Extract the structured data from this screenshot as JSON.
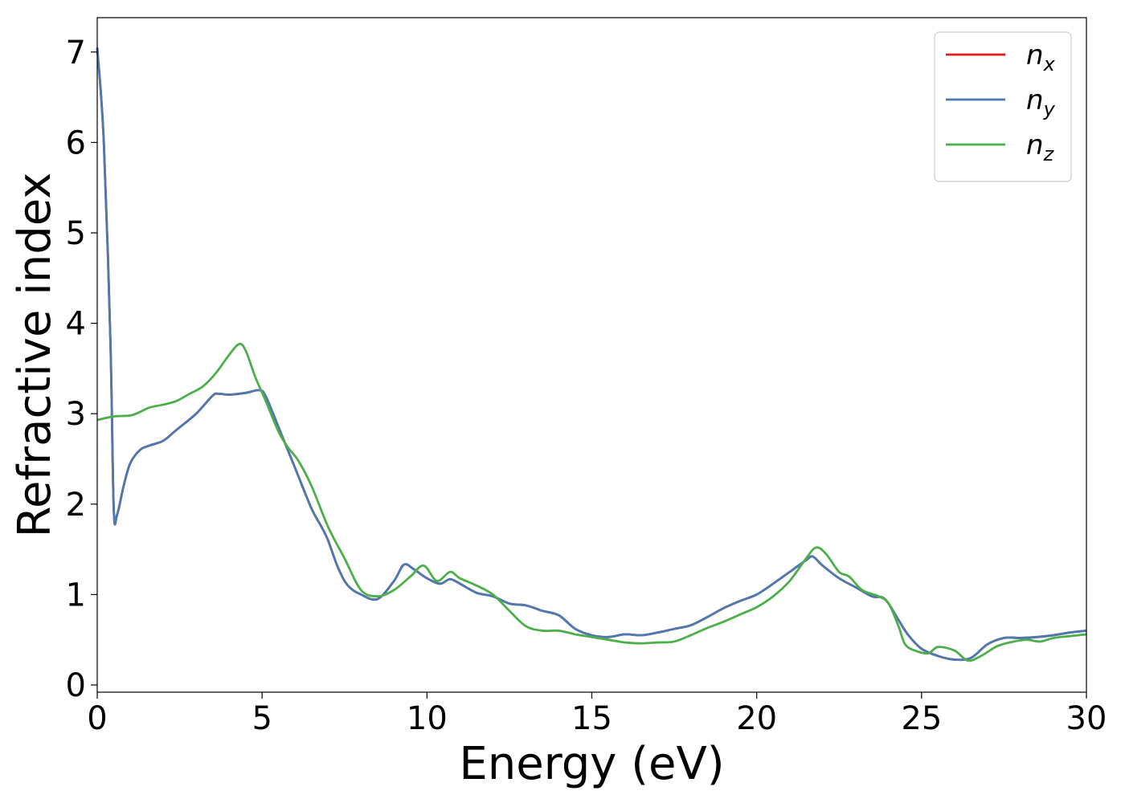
{
  "chart_data": {
    "type": "line",
    "title": "",
    "xlabel": "Energy (eV)",
    "ylabel": "Refractive index",
    "xlim": [
      0,
      30
    ],
    "ylim": [
      -0.08,
      7.38
    ],
    "xticks": [
      0,
      5,
      10,
      15,
      20,
      25,
      30
    ],
    "yticks": [
      0,
      1,
      2,
      3,
      4,
      5,
      6,
      7
    ],
    "grid": false,
    "legend_position": "top-right",
    "series": [
      {
        "name": "n",
        "subscript": "x",
        "color": "#e41a1c",
        "x": [
          0,
          0.2,
          0.4,
          0.5,
          0.6,
          0.8,
          1.0,
          1.3,
          1.6,
          2.0,
          2.4,
          3.0,
          3.5,
          3.7,
          4.0,
          4.5,
          4.9,
          5.1,
          5.5,
          6.0,
          6.5,
          6.8,
          7.0,
          7.3,
          7.6,
          8.0,
          8.5,
          9.0,
          9.3,
          9.6,
          10.0,
          10.4,
          10.7,
          11.0,
          11.5,
          12.0,
          12.5,
          13.0,
          13.5,
          14.0,
          14.5,
          15.0,
          15.5,
          16.0,
          16.5,
          17.0,
          17.5,
          18.0,
          18.5,
          19.0,
          19.5,
          20.0,
          20.5,
          21.0,
          21.5,
          21.7,
          22.0,
          22.5,
          23.0,
          23.5,
          23.8,
          24.0,
          24.3,
          24.6,
          25.0,
          25.5,
          26.0,
          26.5,
          27.0,
          27.5,
          28.0,
          28.5,
          29.0,
          29.5,
          30.0
        ],
        "values": [
          7.05,
          6.0,
          3.8,
          1.95,
          1.88,
          2.2,
          2.45,
          2.6,
          2.65,
          2.7,
          2.82,
          3.0,
          3.2,
          3.22,
          3.21,
          3.23,
          3.26,
          3.2,
          2.85,
          2.4,
          1.95,
          1.75,
          1.6,
          1.3,
          1.1,
          1.0,
          0.95,
          1.15,
          1.33,
          1.28,
          1.18,
          1.12,
          1.17,
          1.12,
          1.02,
          0.98,
          0.9,
          0.88,
          0.82,
          0.77,
          0.62,
          0.55,
          0.53,
          0.56,
          0.55,
          0.58,
          0.62,
          0.66,
          0.75,
          0.85,
          0.93,
          1.0,
          1.12,
          1.25,
          1.38,
          1.42,
          1.32,
          1.18,
          1.08,
          0.98,
          0.97,
          0.9,
          0.72,
          0.55,
          0.4,
          0.32,
          0.28,
          0.3,
          0.45,
          0.52,
          0.52,
          0.53,
          0.55,
          0.58,
          0.6
        ]
      },
      {
        "name": "n",
        "subscript": "y",
        "color": "#4a7ab0",
        "x": [
          0,
          0.2,
          0.4,
          0.5,
          0.6,
          0.8,
          1.0,
          1.3,
          1.6,
          2.0,
          2.4,
          3.0,
          3.5,
          3.7,
          4.0,
          4.5,
          4.9,
          5.1,
          5.5,
          6.0,
          6.5,
          6.8,
          7.0,
          7.3,
          7.6,
          8.0,
          8.5,
          9.0,
          9.3,
          9.6,
          10.0,
          10.4,
          10.7,
          11.0,
          11.5,
          12.0,
          12.5,
          13.0,
          13.5,
          14.0,
          14.5,
          15.0,
          15.5,
          16.0,
          16.5,
          17.0,
          17.5,
          18.0,
          18.5,
          19.0,
          19.5,
          20.0,
          20.5,
          21.0,
          21.5,
          21.7,
          22.0,
          22.5,
          23.0,
          23.5,
          23.8,
          24.0,
          24.3,
          24.6,
          25.0,
          25.5,
          26.0,
          26.5,
          27.0,
          27.5,
          28.0,
          28.5,
          29.0,
          29.5,
          30.0
        ],
        "values": [
          7.05,
          6.0,
          3.8,
          1.95,
          1.88,
          2.2,
          2.45,
          2.6,
          2.65,
          2.7,
          2.82,
          3.0,
          3.2,
          3.22,
          3.21,
          3.23,
          3.26,
          3.2,
          2.85,
          2.4,
          1.95,
          1.75,
          1.6,
          1.3,
          1.1,
          1.0,
          0.95,
          1.15,
          1.33,
          1.28,
          1.18,
          1.12,
          1.17,
          1.12,
          1.02,
          0.98,
          0.9,
          0.88,
          0.82,
          0.77,
          0.62,
          0.55,
          0.53,
          0.56,
          0.55,
          0.58,
          0.62,
          0.66,
          0.75,
          0.85,
          0.93,
          1.0,
          1.12,
          1.25,
          1.38,
          1.42,
          1.32,
          1.18,
          1.08,
          0.98,
          0.97,
          0.9,
          0.72,
          0.55,
          0.4,
          0.32,
          0.28,
          0.3,
          0.45,
          0.52,
          0.52,
          0.53,
          0.55,
          0.58,
          0.6
        ]
      },
      {
        "name": "n",
        "subscript": "z",
        "color": "#4daf4a",
        "x": [
          0,
          0.5,
          1.0,
          1.3,
          1.6,
          2.0,
          2.4,
          2.8,
          3.2,
          3.6,
          4.0,
          4.3,
          4.5,
          4.8,
          5.1,
          5.5,
          5.8,
          6.1,
          6.5,
          7.0,
          7.5,
          8.0,
          8.5,
          9.0,
          9.5,
          9.9,
          10.3,
          10.7,
          11.0,
          11.5,
          12.0,
          12.5,
          13.0,
          13.5,
          14.0,
          14.5,
          15.0,
          15.5,
          16.0,
          16.5,
          17.0,
          17.5,
          18.0,
          18.5,
          19.0,
          19.5,
          20.0,
          20.5,
          21.0,
          21.5,
          21.8,
          22.1,
          22.5,
          22.8,
          23.2,
          23.7,
          24.0,
          24.3,
          24.5,
          24.8,
          25.2,
          25.5,
          26.0,
          26.4,
          26.8,
          27.3,
          27.8,
          28.2,
          28.6,
          29.0,
          29.5,
          30.0
        ],
        "values": [
          2.93,
          2.97,
          2.98,
          3.02,
          3.07,
          3.1,
          3.14,
          3.22,
          3.3,
          3.45,
          3.65,
          3.77,
          3.7,
          3.4,
          3.15,
          2.8,
          2.62,
          2.48,
          2.2,
          1.75,
          1.4,
          1.05,
          0.98,
          1.05,
          1.2,
          1.32,
          1.15,
          1.25,
          1.18,
          1.1,
          1.0,
          0.82,
          0.65,
          0.6,
          0.6,
          0.56,
          0.53,
          0.5,
          0.47,
          0.46,
          0.47,
          0.48,
          0.55,
          0.63,
          0.7,
          0.78,
          0.86,
          0.98,
          1.15,
          1.4,
          1.52,
          1.45,
          1.25,
          1.2,
          1.05,
          0.98,
          0.9,
          0.65,
          0.45,
          0.38,
          0.35,
          0.42,
          0.38,
          0.27,
          0.32,
          0.43,
          0.48,
          0.5,
          0.48,
          0.52,
          0.54,
          0.56
        ]
      }
    ]
  }
}
